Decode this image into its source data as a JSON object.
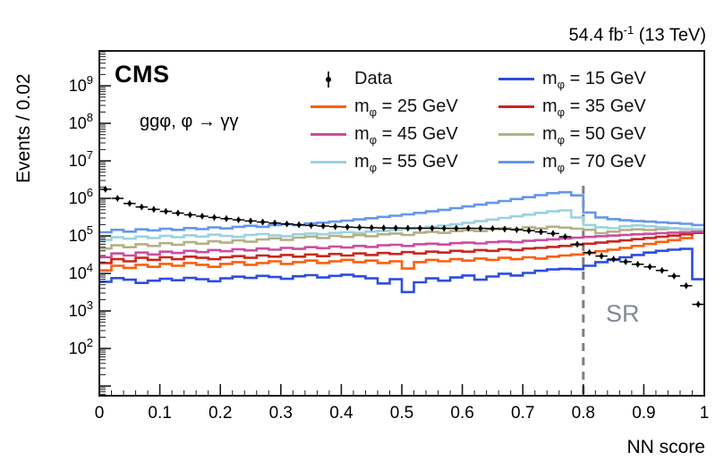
{
  "header": {
    "lumi_pre": "54.4 fb",
    "lumi_sup": "-1",
    "lumi_post": " (13 TeV)"
  },
  "plot_labels": {
    "experiment": "CMS",
    "channel": "ggφ, φ → γγ",
    "sr": "SR",
    "xlabel": "NN score",
    "ylabel": "Events / 0.02"
  },
  "legend": {
    "columns": [
      [
        {
          "key": "data",
          "type": "data-marker",
          "base": "Data",
          "sub": "",
          "rest": "",
          "color": "#000000"
        },
        {
          "key": "m25",
          "type": "line",
          "base": "m",
          "sub": "φ",
          "rest": " = 25 GeV",
          "color": "#fc5f0d"
        },
        {
          "key": "m45",
          "type": "line",
          "base": "m",
          "sub": "φ",
          "rest": " = 45 GeV",
          "color": "#cc4da0"
        },
        {
          "key": "m55",
          "type": "line",
          "base": "m",
          "sub": "φ",
          "rest": " = 55 GeV",
          "color": "#9cd2dd"
        }
      ],
      [
        {
          "key": "m15",
          "type": "line",
          "base": "m",
          "sub": "φ",
          "rest": " = 15 GeV",
          "color": "#2c4de0"
        },
        {
          "key": "m35",
          "type": "line",
          "base": "m",
          "sub": "φ",
          "rest": " = 35 GeV",
          "color": "#c9271e"
        },
        {
          "key": "m50",
          "type": "line",
          "base": "m",
          "sub": "φ",
          "rest": " = 50 GeV",
          "color": "#b2b184"
        },
        {
          "key": "m70",
          "type": "line",
          "base": "m",
          "sub": "φ",
          "rest": " = 70 GeV",
          "color": "#6597ea"
        }
      ]
    ]
  },
  "chart_data": {
    "type": "line",
    "title": "",
    "xlabel": "NN score",
    "ylabel": "Events / 0.02",
    "xlim": [
      0,
      1
    ],
    "ylog": true,
    "ylim": [
      5.5,
      8500000000
    ],
    "bin_width": 0.02,
    "x_start": 0,
    "bin_count": 50,
    "x_tick_labels": [
      "0",
      "0.1",
      "0.2",
      "0.3",
      "0.4",
      "0.5",
      "0.6",
      "0.7",
      "0.8",
      "0.9",
      "1"
    ],
    "y_tick_exponents": [
      2,
      3,
      4,
      5,
      6,
      7,
      8,
      9
    ],
    "sr_cut": {
      "x": 0.8,
      "label": "SR",
      "line_color": "#7f7f7f",
      "label_color": "#7f8a95"
    },
    "data_series": {
      "name": "Data",
      "color": "#000000",
      "values": [
        1750000,
        1000000,
        730000,
        590000,
        510000,
        450000,
        405000,
        365000,
        335000,
        310000,
        288000,
        268000,
        250000,
        234000,
        220000,
        208000,
        198000,
        190000,
        183000,
        177000,
        172000,
        168000,
        165000,
        163000,
        162000,
        161000,
        160000,
        160000,
        159000,
        159000,
        160000,
        159000,
        157000,
        152000,
        146000,
        138000,
        128000,
        116000,
        95000,
        60000,
        36000,
        29000,
        24000,
        20500,
        17500,
        15000,
        12000,
        8500,
        4700,
        1500
      ]
    },
    "signal_series": [
      {
        "name": "m_phi = 15 GeV",
        "mass": "15",
        "color": "#2c4de0",
        "values": [
          6000,
          7500,
          6800,
          5600,
          6400,
          7200,
          6600,
          7600,
          7000,
          6200,
          7400,
          8200,
          7600,
          8600,
          8000,
          7200,
          8400,
          9000,
          7800,
          8600,
          9200,
          8400,
          7400,
          5400,
          7000,
          3200,
          5800,
          7400,
          6400,
          7800,
          8800,
          6800,
          8300,
          9800,
          8800,
          10300,
          11800,
          12800,
          13300,
          13000,
          16000,
          20000,
          23000,
          27000,
          31000,
          36000,
          40000,
          43000,
          45000,
          7000
        ]
      },
      {
        "name": "m_phi = 25 GeV",
        "mass": "25",
        "color": "#fc5f0d",
        "values": [
          12000,
          16000,
          14000,
          17000,
          15000,
          18000,
          16000,
          19000,
          17000,
          15000,
          18000,
          20000,
          17000,
          19000,
          21000,
          18000,
          20000,
          22000,
          19000,
          21000,
          23000,
          20000,
          22000,
          19000,
          21000,
          13500,
          20000,
          23000,
          21000,
          24000,
          22000,
          25000,
          23000,
          26000,
          24000,
          27000,
          25000,
          28000,
          30000,
          32000,
          35000,
          39000,
          43000,
          48000,
          54000,
          61000,
          69000,
          77000,
          87000,
          145000
        ]
      },
      {
        "name": "m_phi = 35 GeV",
        "mass": "35",
        "color": "#c9271e",
        "values": [
          19000,
          24000,
          21000,
          26000,
          23000,
          27000,
          24000,
          28000,
          26000,
          24000,
          27000,
          29000,
          26000,
          30000,
          28000,
          31000,
          28000,
          32000,
          29000,
          33000,
          30000,
          34000,
          31000,
          35000,
          33000,
          37000,
          34000,
          38000,
          36000,
          40000,
          38000,
          42000,
          40000,
          44000,
          42000,
          46000,
          48000,
          51000,
          54000,
          58000,
          62000,
          66000,
          71000,
          76000,
          82000,
          88000,
          95000,
          102000,
          110000,
          120000
        ]
      },
      {
        "name": "m_phi = 45 GeV",
        "mass": "45",
        "color": "#cc4da0",
        "values": [
          27000,
          34000,
          30000,
          36000,
          32000,
          38000,
          35000,
          40000,
          37000,
          42000,
          39000,
          44000,
          41000,
          46000,
          43000,
          48000,
          45000,
          50000,
          47000,
          52000,
          49000,
          54000,
          51000,
          56000,
          58000,
          54000,
          60000,
          62000,
          59000,
          64000,
          66000,
          63000,
          68000,
          71000,
          68000,
          74000,
          77000,
          81000,
          85000,
          90000,
          94000,
          98000,
          102000,
          106000,
          110000,
          114000,
          118000,
          122000,
          126000,
          130000
        ]
      },
      {
        "name": "m_phi = 50 GeV",
        "mass": "50",
        "color": "#b2b184",
        "values": [
          46000,
          56000,
          50000,
          60000,
          54000,
          64000,
          58000,
          68000,
          62000,
          72000,
          66000,
          76000,
          70000,
          80000,
          86000,
          78000,
          90000,
          96000,
          88000,
          100000,
          94000,
          105000,
          98000,
          110000,
          116000,
          106000,
          122000,
          128000,
          120000,
          134000,
          142000,
          134000,
          150000,
          160000,
          150000,
          168000,
          158000,
          176000,
          166000,
          156000,
          146000,
          118000,
          130000,
          144000,
          150000,
          144000,
          152000,
          158000,
          152000,
          148000
        ]
      },
      {
        "name": "m_phi = 55 GeV",
        "mass": "55",
        "color": "#9cd2dd",
        "values": [
          78000,
          92000,
          84000,
          96000,
          88000,
          100000,
          92000,
          104000,
          96000,
          108000,
          100000,
          94000,
          106000,
          112000,
          104000,
          98000,
          110000,
          116000,
          110000,
          120000,
          126000,
          120000,
          130000,
          136000,
          144000,
          154000,
          164000,
          176000,
          188000,
          204000,
          224000,
          246000,
          272000,
          300000,
          332000,
          368000,
          410000,
          450000,
          480000,
          310000,
          195000,
          170000,
          160000,
          180000,
          190000,
          180000,
          170000,
          162000,
          156000,
          150000
        ]
      },
      {
        "name": "m_phi = 70 GeV",
        "mass": "70",
        "color": "#6597ea",
        "values": [
          125000,
          145000,
          130000,
          150000,
          140000,
          155000,
          145000,
          162000,
          152000,
          168000,
          158000,
          175000,
          185000,
          175000,
          195000,
          205000,
          195000,
          215000,
          225000,
          240000,
          255000,
          275000,
          295000,
          320000,
          345000,
          375000,
          410000,
          450000,
          495000,
          550000,
          610000,
          680000,
          760000,
          850000,
          960000,
          1080000,
          1220000,
          1380000,
          1460000,
          1200000,
          420000,
          310000,
          280000,
          260000,
          250000,
          240000,
          230000,
          220000,
          210000,
          195000
        ]
      }
    ]
  }
}
